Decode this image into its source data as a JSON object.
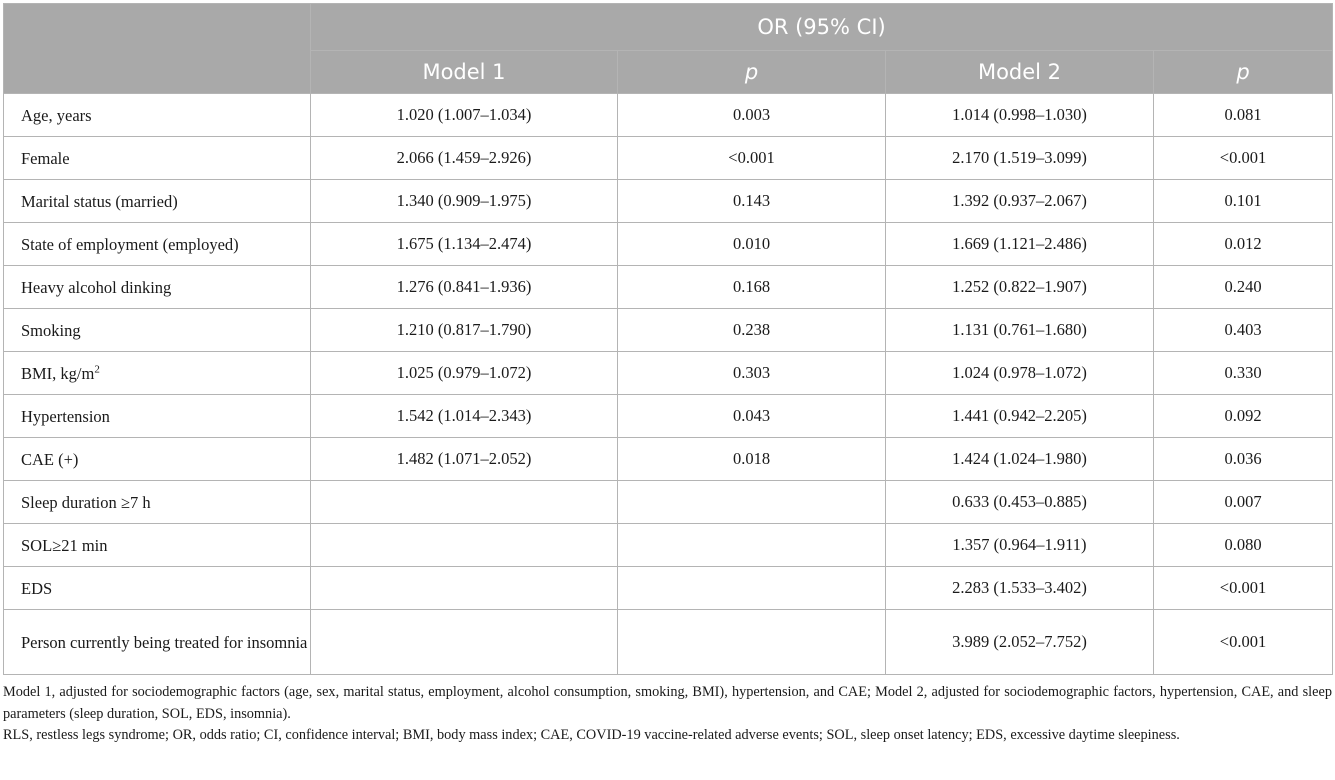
{
  "header": {
    "group_label": "OR (95% CI)",
    "columns": [
      "Model 1",
      "p",
      "Model 2",
      "p"
    ]
  },
  "rows": [
    {
      "label": "Age, years",
      "m1": "1.020 (1.007–1.034)",
      "p1": "0.003",
      "m2": "1.014 (0.998–1.030)",
      "p2": "0.081"
    },
    {
      "label": "Female",
      "m1": "2.066 (1.459–2.926)",
      "p1": "<0.001",
      "m2": "2.170 (1.519–3.099)",
      "p2": "<0.001"
    },
    {
      "label": "Marital status (married)",
      "m1": "1.340 (0.909–1.975)",
      "p1": "0.143",
      "m2": "1.392 (0.937–2.067)",
      "p2": "0.101"
    },
    {
      "label": "State of employment (employed)",
      "m1": "1.675 (1.134–2.474)",
      "p1": "0.010",
      "m2": "1.669 (1.121–2.486)",
      "p2": "0.012"
    },
    {
      "label": "Heavy alcohol dinking",
      "m1": "1.276 (0.841–1.936)",
      "p1": "0.168",
      "m2": "1.252 (0.822–1.907)",
      "p2": "0.240"
    },
    {
      "label": "Smoking",
      "m1": "1.210 (0.817–1.790)",
      "p1": "0.238",
      "m2": "1.131 (0.761–1.680)",
      "p2": "0.403"
    },
    {
      "label": "BMI, kg/m",
      "label_sup": "2",
      "m1": "1.025 (0.979–1.072)",
      "p1": "0.303",
      "m2": "1.024 (0.978–1.072)",
      "p2": "0.330"
    },
    {
      "label": "Hypertension",
      "m1": "1.542 (1.014–2.343)",
      "p1": "0.043",
      "m2": "1.441 (0.942–2.205)",
      "p2": "0.092"
    },
    {
      "label": "CAE (+)",
      "m1": "1.482 (1.071–2.052)",
      "p1": "0.018",
      "m2": "1.424 (1.024–1.980)",
      "p2": "0.036"
    },
    {
      "label": "Sleep duration ≥7 h",
      "m1": "",
      "p1": "",
      "m2": "0.633 (0.453–0.885)",
      "p2": "0.007"
    },
    {
      "label": "SOL≥21 min",
      "m1": "",
      "p1": "",
      "m2": "1.357 (0.964–1.911)",
      "p2": "0.080"
    },
    {
      "label": "EDS",
      "m1": "",
      "p1": "",
      "m2": "2.283 (1.533–3.402)",
      "p2": "<0.001"
    },
    {
      "label": "Person currently being treated for insomnia",
      "m1": "",
      "p1": "",
      "m2": "3.989 (2.052–7.752)",
      "p2": "<0.001"
    }
  ],
  "footnotes": [
    "Model 1, adjusted for sociodemographic factors (age, sex, marital status, employment, alcohol consumption, smoking, BMI), hypertension, and CAE; Model 2, adjusted for sociodemographic factors, hypertension, CAE, and sleep parameters (sleep duration, SOL, EDS, insomnia).",
    "RLS, restless legs syndrome; OR, odds ratio; CI, confidence interval; BMI, body mass index; CAE, COVID-19 vaccine-related adverse events; SOL, sleep onset latency; EDS, excessive daytime sleepiness."
  ]
}
